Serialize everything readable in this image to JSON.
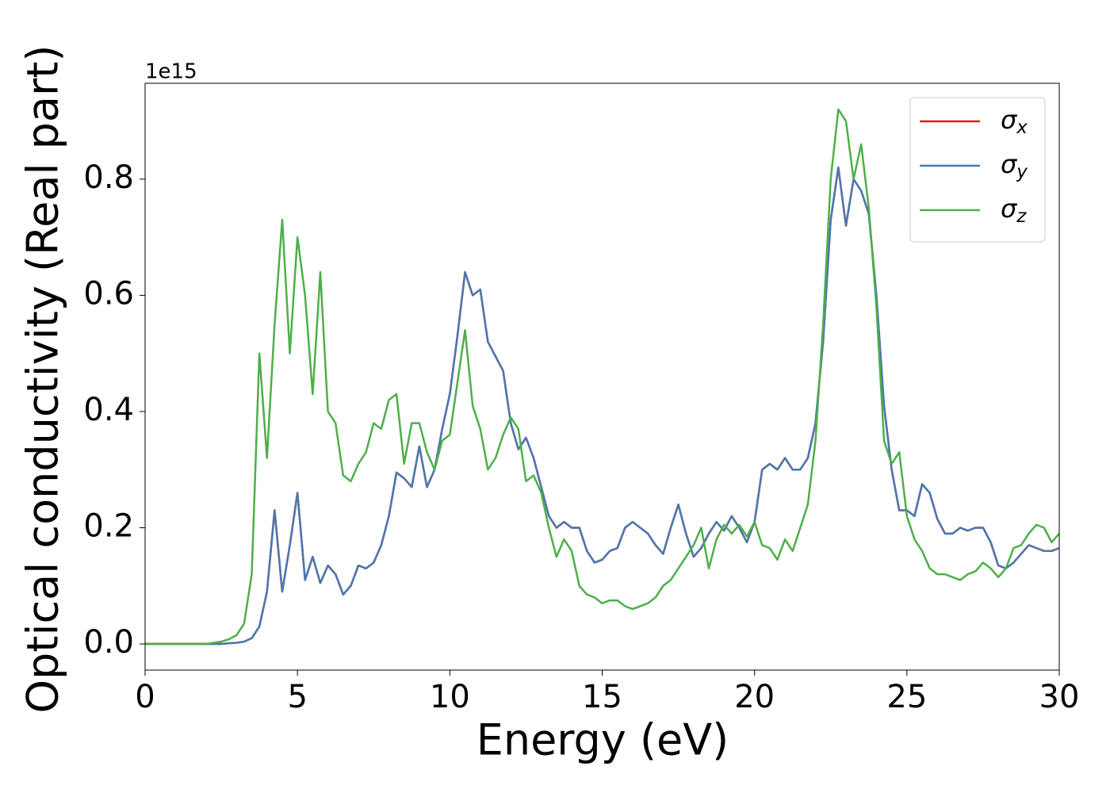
{
  "chart_data": {
    "type": "line",
    "xlabel": "Energy (eV)",
    "ylabel": "Optical conductivity (Real part)",
    "y_offset_label": "1e15",
    "x": [
      0,
      0.25,
      0.5,
      0.75,
      1,
      1.25,
      1.5,
      1.75,
      2,
      2.25,
      2.5,
      2.75,
      3,
      3.25,
      3.5,
      3.75,
      4,
      4.25,
      4.5,
      4.75,
      5,
      5.25,
      5.5,
      5.75,
      6,
      6.25,
      6.5,
      6.75,
      7,
      7.25,
      7.5,
      7.75,
      8,
      8.25,
      8.5,
      8.75,
      9,
      9.25,
      9.5,
      9.75,
      10,
      10.25,
      10.5,
      10.75,
      11,
      11.25,
      11.5,
      11.75,
      12,
      12.25,
      12.5,
      12.75,
      13,
      13.25,
      13.5,
      13.75,
      14,
      14.25,
      14.5,
      14.75,
      15,
      15.25,
      15.5,
      15.75,
      16,
      16.25,
      16.5,
      16.75,
      17,
      17.25,
      17.5,
      17.75,
      18,
      18.25,
      18.5,
      18.75,
      19,
      19.25,
      19.5,
      19.75,
      20,
      20.25,
      20.5,
      20.75,
      21,
      21.25,
      21.5,
      21.75,
      22,
      22.25,
      22.5,
      22.75,
      23,
      23.25,
      23.5,
      23.75,
      24,
      24.25,
      24.5,
      24.75,
      25,
      25.25,
      25.5,
      25.75,
      26,
      26.25,
      26.5,
      26.75,
      27,
      27.25,
      27.5,
      27.75,
      28,
      28.25,
      28.5,
      28.75,
      29,
      29.25,
      29.5,
      29.75,
      30
    ],
    "series": [
      {
        "name": "σx",
        "color": "#e41a1c",
        "values": [
          0,
          0,
          0,
          0,
          0,
          0,
          0,
          0,
          0,
          0,
          0,
          0.001,
          0.002,
          0.004,
          0.01,
          0.03,
          0.09,
          0.23,
          0.09,
          0.17,
          0.26,
          0.11,
          0.15,
          0.105,
          0.135,
          0.12,
          0.085,
          0.1,
          0.135,
          0.13,
          0.14,
          0.17,
          0.22,
          0.295,
          0.285,
          0.27,
          0.34,
          0.27,
          0.3,
          0.37,
          0.43,
          0.53,
          0.64,
          0.6,
          0.61,
          0.52,
          0.495,
          0.47,
          0.38,
          0.335,
          0.355,
          0.32,
          0.27,
          0.22,
          0.2,
          0.21,
          0.2,
          0.2,
          0.16,
          0.14,
          0.145,
          0.16,
          0.165,
          0.2,
          0.21,
          0.2,
          0.19,
          0.17,
          0.155,
          0.2,
          0.24,
          0.19,
          0.15,
          0.165,
          0.19,
          0.21,
          0.195,
          0.22,
          0.2,
          0.175,
          0.21,
          0.3,
          0.31,
          0.3,
          0.32,
          0.3,
          0.3,
          0.32,
          0.38,
          0.52,
          0.73,
          0.82,
          0.72,
          0.8,
          0.78,
          0.74,
          0.6,
          0.41,
          0.3,
          0.23,
          0.23,
          0.22,
          0.275,
          0.26,
          0.215,
          0.19,
          0.19,
          0.2,
          0.195,
          0.2,
          0.2,
          0.175,
          0.135,
          0.13,
          0.14,
          0.155,
          0.17,
          0.165,
          0.16,
          0.16,
          0.165
        ]
      },
      {
        "name": "σy",
        "color": "#4a78b0",
        "values": [
          0,
          0,
          0,
          0,
          0,
          0,
          0,
          0,
          0,
          0,
          0,
          0.001,
          0.002,
          0.004,
          0.01,
          0.03,
          0.09,
          0.23,
          0.09,
          0.17,
          0.26,
          0.11,
          0.15,
          0.105,
          0.135,
          0.12,
          0.085,
          0.1,
          0.135,
          0.13,
          0.14,
          0.17,
          0.22,
          0.295,
          0.285,
          0.27,
          0.34,
          0.27,
          0.3,
          0.37,
          0.43,
          0.53,
          0.64,
          0.6,
          0.61,
          0.52,
          0.495,
          0.47,
          0.38,
          0.335,
          0.355,
          0.32,
          0.27,
          0.22,
          0.2,
          0.21,
          0.2,
          0.2,
          0.16,
          0.14,
          0.145,
          0.16,
          0.165,
          0.2,
          0.21,
          0.2,
          0.19,
          0.17,
          0.155,
          0.2,
          0.24,
          0.19,
          0.15,
          0.165,
          0.19,
          0.21,
          0.195,
          0.22,
          0.2,
          0.175,
          0.21,
          0.3,
          0.31,
          0.3,
          0.32,
          0.3,
          0.3,
          0.32,
          0.38,
          0.52,
          0.73,
          0.82,
          0.72,
          0.8,
          0.78,
          0.74,
          0.6,
          0.41,
          0.3,
          0.23,
          0.23,
          0.22,
          0.275,
          0.26,
          0.215,
          0.19,
          0.19,
          0.2,
          0.195,
          0.2,
          0.2,
          0.175,
          0.135,
          0.13,
          0.14,
          0.155,
          0.17,
          0.165,
          0.16,
          0.16,
          0.165
        ]
      },
      {
        "name": "σz",
        "color": "#4daf4a",
        "values": [
          0,
          0,
          0,
          0,
          0,
          0,
          0,
          0,
          0,
          0.002,
          0.004,
          0.008,
          0.015,
          0.035,
          0.12,
          0.5,
          0.32,
          0.55,
          0.73,
          0.5,
          0.7,
          0.6,
          0.43,
          0.64,
          0.4,
          0.38,
          0.29,
          0.28,
          0.31,
          0.33,
          0.38,
          0.37,
          0.42,
          0.43,
          0.31,
          0.38,
          0.38,
          0.33,
          0.3,
          0.35,
          0.36,
          0.45,
          0.54,
          0.41,
          0.37,
          0.3,
          0.32,
          0.36,
          0.39,
          0.37,
          0.28,
          0.29,
          0.26,
          0.2,
          0.15,
          0.18,
          0.16,
          0.1,
          0.085,
          0.08,
          0.07,
          0.075,
          0.075,
          0.065,
          0.06,
          0.065,
          0.07,
          0.08,
          0.1,
          0.11,
          0.13,
          0.15,
          0.17,
          0.2,
          0.13,
          0.18,
          0.205,
          0.19,
          0.205,
          0.185,
          0.21,
          0.17,
          0.165,
          0.145,
          0.18,
          0.16,
          0.2,
          0.24,
          0.35,
          0.55,
          0.8,
          0.92,
          0.9,
          0.8,
          0.86,
          0.75,
          0.58,
          0.35,
          0.31,
          0.33,
          0.22,
          0.18,
          0.16,
          0.13,
          0.12,
          0.12,
          0.115,
          0.11,
          0.12,
          0.125,
          0.14,
          0.13,
          0.115,
          0.13,
          0.165,
          0.17,
          0.19,
          0.205,
          0.2,
          0.175,
          0.19
        ]
      }
    ],
    "xlim": [
      0,
      30
    ],
    "xticks": [
      0,
      5,
      10,
      15,
      20,
      25,
      30
    ],
    "ylim": [
      -0.045,
      0.965
    ],
    "yticks": [
      {
        "value": 0,
        "label": "0.0"
      },
      0.2,
      0.4,
      0.6,
      0.8
    ],
    "legend": "upper right"
  }
}
